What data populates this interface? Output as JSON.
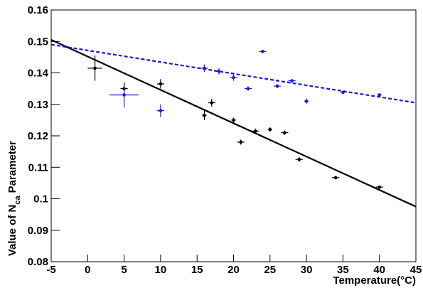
{
  "chart_data": {
    "type": "scatter",
    "xlabel": "Temperature(°C)",
    "ylabel": {
      "text": "Value of N",
      "sub": "ca",
      "rest": "Parameter"
    },
    "xlim": [
      -5,
      45
    ],
    "xticks": [
      -5,
      0,
      5,
      10,
      15,
      20,
      25,
      30,
      35,
      40,
      45
    ],
    "ylim": [
      0.08,
      0.16
    ],
    "yticks": [
      0.08,
      0.09,
      0.1,
      0.11,
      0.12,
      0.13,
      0.14,
      0.15,
      0.16
    ],
    "series": [
      {
        "color": "#000000",
        "x": [
          1,
          5,
          10,
          16,
          17,
          20,
          21,
          23,
          25,
          27,
          29,
          34,
          40
        ],
        "values": [
          0.1415,
          0.135,
          0.1365,
          0.1265,
          0.1305,
          0.125,
          0.118,
          0.1215,
          0.122,
          0.121,
          0.1125,
          0.1067,
          0.1037
        ],
        "xerr": [
          1,
          0.5,
          0.5,
          0.3,
          0.5,
          0.3,
          0.5,
          0.5,
          0.3,
          0.5,
          0.5,
          0.5,
          0.5
        ],
        "yerr": [
          0.004,
          0.0018,
          0.0015,
          0.0015,
          0.0012,
          0.0008,
          0.0008,
          0.0008,
          0.0007,
          0.0007,
          0.0007,
          0.0005,
          0.0005
        ]
      },
      {
        "color": "#1a1ad0",
        "x": [
          5,
          10,
          16,
          18,
          20,
          22,
          24,
          26,
          28,
          30,
          35,
          40
        ],
        "values": [
          0.133,
          0.128,
          0.1415,
          0.1405,
          0.1385,
          0.135,
          0.1468,
          0.1358,
          0.1375,
          0.131,
          0.1338,
          0.133
        ],
        "xerr": [
          2,
          0.5,
          0.5,
          0.5,
          0.5,
          0.5,
          0.5,
          0.5,
          0.5,
          0.3,
          0.3,
          0.3
        ],
        "yerr": [
          0.004,
          0.002,
          0.0012,
          0.001,
          0.001,
          0.0007,
          0.0005,
          0.0006,
          0.0005,
          0.0008,
          0.0004,
          0.0004
        ]
      }
    ],
    "fits": [
      {
        "color": "#000000",
        "dashed": false,
        "x": [
          -5,
          45
        ],
        "values": [
          0.1505,
          0.0975
        ]
      },
      {
        "color": "#1a1ad0",
        "dashed": true,
        "x": [
          -5,
          45
        ],
        "values": [
          0.149,
          0.1305
        ]
      }
    ]
  }
}
